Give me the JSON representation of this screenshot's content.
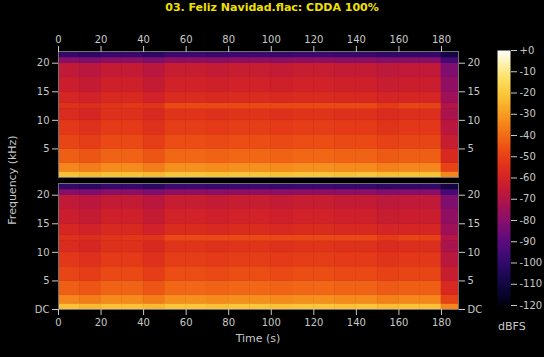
{
  "chart_data": {
    "type": "heatmap",
    "title": "03. Feliz Navidad.flac: CDDA 100%",
    "xlabel": "Time (s)",
    "ylabel": "Frequency (kHz)",
    "xlim": [
      0,
      188
    ],
    "xticks": [
      0,
      20,
      40,
      60,
      80,
      100,
      120,
      140,
      160,
      180
    ],
    "ylim": [
      0,
      22.05
    ],
    "x_bins": [
      0,
      10,
      20,
      30,
      40,
      50,
      60,
      70,
      80,
      90,
      100,
      110,
      120,
      130,
      140,
      150,
      160,
      170,
      180,
      188
    ],
    "y_bins": [
      0,
      1,
      2.5,
      5,
      7.5,
      10,
      12,
      13,
      15,
      17.5,
      20,
      21,
      22.05
    ],
    "channels": [
      {
        "yticks": [
          5,
          10,
          15,
          20
        ],
        "cells": [
          [
            -22,
            -24,
            -22,
            -22,
            -24,
            -21,
            -21,
            -22,
            -21,
            -21,
            -22,
            -21,
            -21,
            -22,
            -21,
            -23,
            -22,
            -22,
            -35
          ],
          [
            -35,
            -37,
            -34,
            -34,
            -37,
            -33,
            -33,
            -34,
            -33,
            -33,
            -34,
            -33,
            -33,
            -34,
            -34,
            -36,
            -35,
            -35,
            -50
          ],
          [
            -43,
            -45,
            -42,
            -42,
            -45,
            -41,
            -41,
            -42,
            -41,
            -41,
            -42,
            -41,
            -41,
            -42,
            -42,
            -44,
            -43,
            -43,
            -58
          ],
          [
            -49,
            -51,
            -48,
            -48,
            -51,
            -47,
            -47,
            -48,
            -47,
            -47,
            -48,
            -47,
            -47,
            -48,
            -48,
            -50,
            -49,
            -49,
            -64
          ],
          [
            -53,
            -55,
            -52,
            -52,
            -55,
            -51,
            -51,
            -52,
            -51,
            -51,
            -52,
            -51,
            -51,
            -52,
            -52,
            -54,
            -53,
            -53,
            -68
          ],
          [
            -57,
            -59,
            -55,
            -55,
            -58,
            -54,
            -54,
            -55,
            -54,
            -54,
            -55,
            -54,
            -54,
            -55,
            -55,
            -57,
            -56,
            -56,
            -72
          ],
          [
            -55,
            -56,
            -54,
            -53,
            -54,
            -48,
            -48,
            -48,
            -48,
            -48,
            -48,
            -48,
            -48,
            -48,
            -48,
            -52,
            -49,
            -50,
            -70
          ],
          [
            -59,
            -61,
            -58,
            -58,
            -61,
            -57,
            -57,
            -58,
            -57,
            -57,
            -58,
            -57,
            -57,
            -58,
            -58,
            -60,
            -59,
            -59,
            -75
          ],
          [
            -63,
            -65,
            -62,
            -62,
            -65,
            -61,
            -61,
            -62,
            -61,
            -61,
            -62,
            -61,
            -61,
            -62,
            -62,
            -64,
            -63,
            -63,
            -78
          ],
          [
            -66,
            -68,
            -65,
            -65,
            -68,
            -64,
            -64,
            -65,
            -64,
            -64,
            -65,
            -64,
            -64,
            -65,
            -65,
            -67,
            -66,
            -66,
            -82
          ],
          [
            -80,
            -82,
            -79,
            -79,
            -82,
            -78,
            -78,
            -79,
            -78,
            -78,
            -79,
            -78,
            -78,
            -79,
            -79,
            -81,
            -80,
            -80,
            -95
          ],
          [
            -100,
            -102,
            -99,
            -99,
            -102,
            -98,
            -98,
            -99,
            -98,
            -98,
            -99,
            -98,
            -98,
            -99,
            -99,
            -101,
            -100,
            -100,
            -110
          ]
        ]
      },
      {
        "yticks": [
          {
            "value": 0,
            "label": "DC"
          },
          5,
          10,
          15,
          20
        ],
        "cells": [
          [
            -22,
            -24,
            -22,
            -22,
            -24,
            -21,
            -21,
            -22,
            -21,
            -21,
            -22,
            -21,
            -21,
            -22,
            -21,
            -23,
            -22,
            -22,
            -35
          ],
          [
            -35,
            -37,
            -34,
            -34,
            -37,
            -33,
            -33,
            -34,
            -33,
            -33,
            -34,
            -33,
            -33,
            -34,
            -34,
            -36,
            -35,
            -35,
            -50
          ],
          [
            -43,
            -45,
            -42,
            -42,
            -45,
            -41,
            -41,
            -42,
            -41,
            -41,
            -42,
            -41,
            -41,
            -42,
            -42,
            -44,
            -43,
            -43,
            -58
          ],
          [
            -49,
            -51,
            -48,
            -48,
            -51,
            -47,
            -47,
            -48,
            -47,
            -47,
            -48,
            -47,
            -47,
            -48,
            -48,
            -50,
            -49,
            -49,
            -64
          ],
          [
            -53,
            -55,
            -52,
            -52,
            -55,
            -51,
            -51,
            -52,
            -51,
            -51,
            -52,
            -51,
            -51,
            -52,
            -52,
            -54,
            -53,
            -53,
            -68
          ],
          [
            -57,
            -59,
            -55,
            -55,
            -58,
            -54,
            -54,
            -55,
            -54,
            -54,
            -55,
            -54,
            -54,
            -55,
            -55,
            -57,
            -56,
            -56,
            -72
          ],
          [
            -55,
            -56,
            -54,
            -53,
            -54,
            -48,
            -48,
            -48,
            -48,
            -48,
            -48,
            -48,
            -48,
            -48,
            -48,
            -52,
            -49,
            -50,
            -70
          ],
          [
            -59,
            -61,
            -58,
            -58,
            -61,
            -57,
            -57,
            -58,
            -57,
            -57,
            -58,
            -57,
            -57,
            -58,
            -58,
            -60,
            -59,
            -59,
            -75
          ],
          [
            -63,
            -65,
            -62,
            -62,
            -65,
            -61,
            -61,
            -62,
            -61,
            -61,
            -62,
            -61,
            -61,
            -62,
            -62,
            -64,
            -63,
            -63,
            -78
          ],
          [
            -66,
            -68,
            -65,
            -65,
            -68,
            -64,
            -64,
            -65,
            -64,
            -64,
            -65,
            -64,
            -64,
            -65,
            -65,
            -67,
            -66,
            -66,
            -82
          ],
          [
            -80,
            -82,
            -79,
            -79,
            -82,
            -78,
            -78,
            -79,
            -78,
            -78,
            -79,
            -78,
            -78,
            -79,
            -79,
            -81,
            -80,
            -80,
            -95
          ],
          [
            -100,
            -102,
            -99,
            -99,
            -102,
            -98,
            -98,
            -99,
            -98,
            -98,
            -99,
            -98,
            -98,
            -99,
            -99,
            -101,
            -100,
            -100,
            -110
          ]
        ]
      }
    ],
    "colorbar": {
      "range": [
        -120,
        0
      ],
      "ticks": [
        {
          "value": 0,
          "label": "+0"
        },
        -10,
        -20,
        -30,
        -40,
        -50,
        -60,
        -70,
        -80,
        -90,
        -100,
        -110,
        -120
      ],
      "label": "dBFS"
    }
  }
}
